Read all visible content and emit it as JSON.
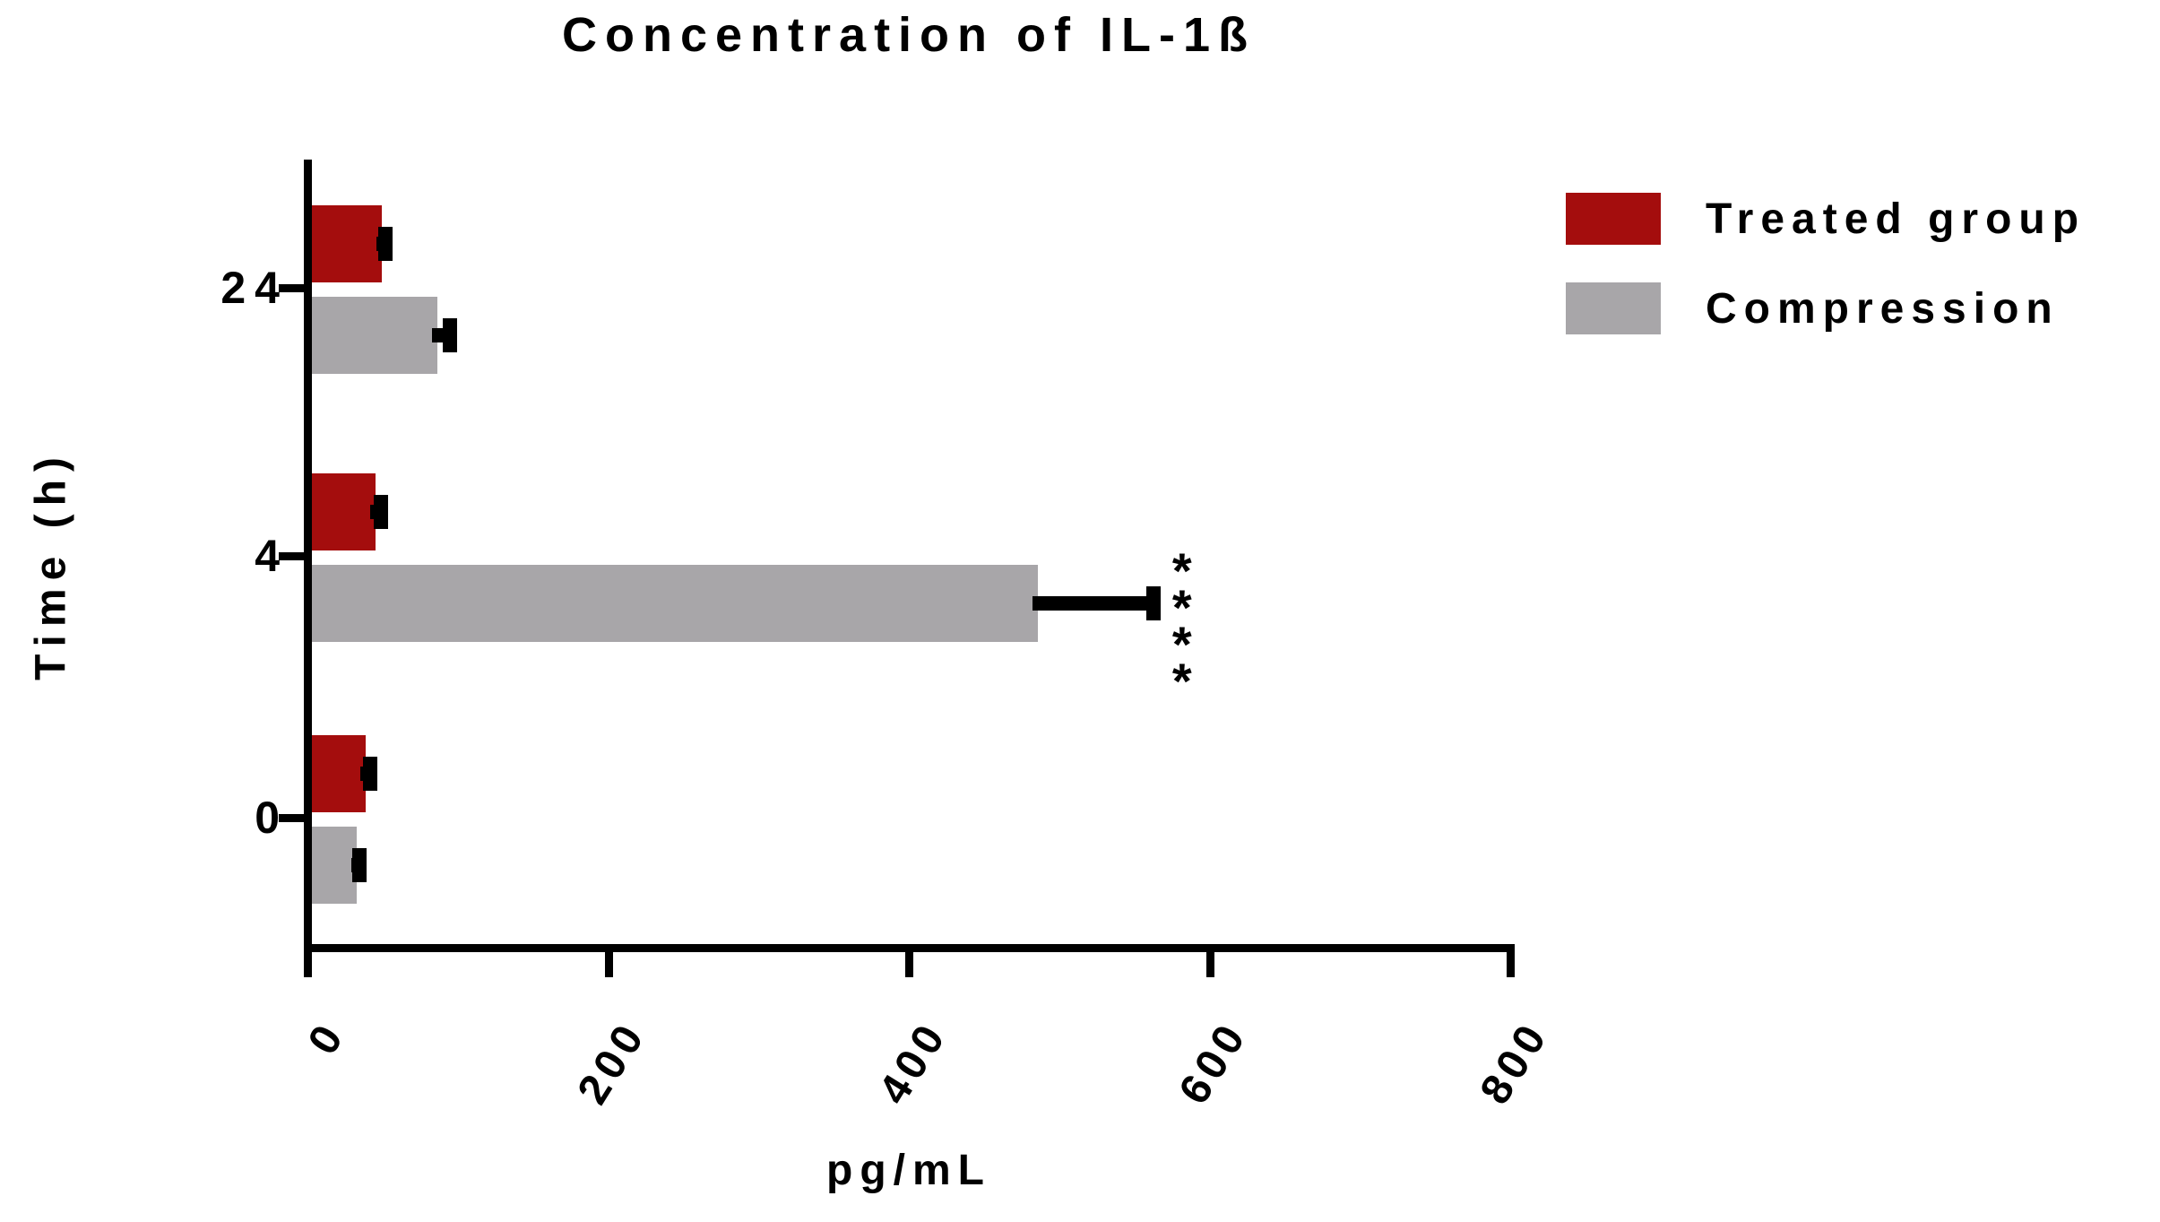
{
  "chart_data": {
    "type": "bar",
    "orientation": "horizontal",
    "title": "Concentration of IL-1ß",
    "xlabel": "pg/mL",
    "ylabel": "Time (h)",
    "xlim": [
      0,
      800
    ],
    "x_ticks": [
      0,
      200,
      400,
      600,
      800
    ],
    "categories": [
      "24",
      "4",
      "0"
    ],
    "series": [
      {
        "name": "Treated group",
        "color": "#A40D0D",
        "values": [
          49,
          45,
          38
        ],
        "errors": [
          2,
          3,
          3
        ]
      },
      {
        "name": "Compression",
        "color": "#A8A6A9",
        "values": [
          86,
          485,
          32
        ],
        "errors": [
          8,
          77,
          2
        ]
      }
    ],
    "annotations": [
      {
        "category": "4",
        "series": "Compression",
        "text": "****"
      }
    ],
    "legend_position": "top-right",
    "grid": false,
    "background_color": "#FFFFFF",
    "axis_color": "#000000"
  },
  "legend": {
    "items": [
      {
        "label": "Treated group",
        "color": "#A40D0D"
      },
      {
        "label": "Compression",
        "color": "#A8A6A9"
      }
    ]
  }
}
